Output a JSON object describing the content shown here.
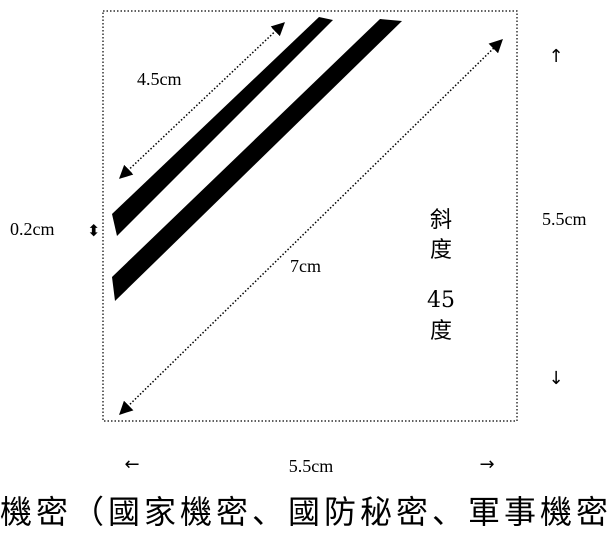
{
  "labels": {
    "stripe_length": "4.5cm",
    "stripe_width": "0.2cm",
    "diagonal": "7cm",
    "height": "5.5cm",
    "width": "5.5cm"
  },
  "slope": [
    "斜",
    "度",
    "45",
    "度"
  ],
  "arrows": {
    "up": "↑",
    "down": "↓",
    "left": "←",
    "right": "→",
    "updown": "⬍"
  },
  "footer_text": "機密（國家機密、國防秘密、軍事機密"
}
